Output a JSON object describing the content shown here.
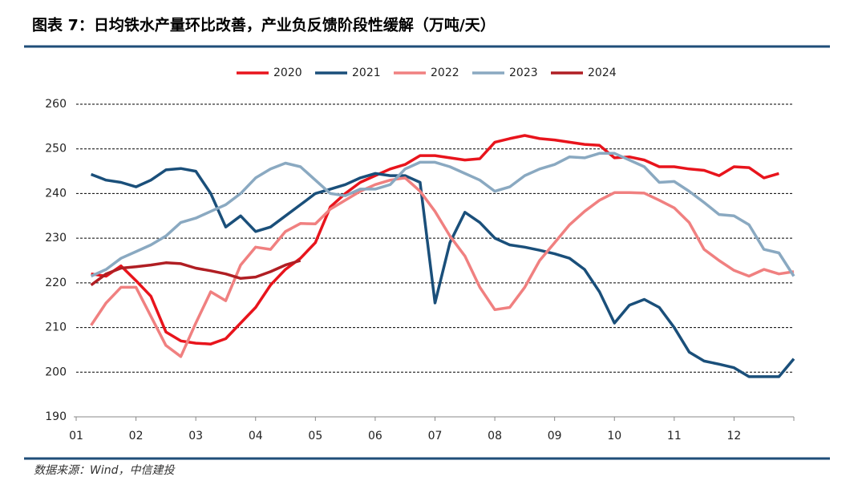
{
  "chart_data": {
    "type": "line",
    "title": "图表 7：日均铁水产量环比改善，产业负反馈阶段性缓解（万吨/天）",
    "source": "数据来源：Wind，中信建投",
    "x": [
      1.25,
      1.5,
      1.75,
      2.0,
      2.25,
      2.5,
      2.75,
      3.0,
      3.25,
      3.5,
      3.75,
      4.0,
      4.25,
      4.5,
      4.75,
      5.0,
      5.25,
      5.5,
      5.75,
      6.0,
      6.25,
      6.5,
      6.75,
      7.0,
      7.25,
      7.5,
      7.75,
      8.0,
      8.25,
      8.5,
      8.75,
      9.0,
      9.25,
      9.5,
      9.75,
      10.0,
      10.25,
      10.5,
      10.75,
      11.0,
      11.25,
      11.5,
      11.75,
      12.0,
      12.25,
      12.5,
      12.75,
      13.0
    ],
    "xlim": [
      1,
      13
    ],
    "xticks": [
      {
        "value": 1,
        "label": "01"
      },
      {
        "value": 2,
        "label": "02"
      },
      {
        "value": 3,
        "label": "03"
      },
      {
        "value": 4,
        "label": "04"
      },
      {
        "value": 5,
        "label": "05"
      },
      {
        "value": 6,
        "label": "06"
      },
      {
        "value": 7,
        "label": "07"
      },
      {
        "value": 8,
        "label": "08"
      },
      {
        "value": 9,
        "label": "09"
      },
      {
        "value": 10,
        "label": "10"
      },
      {
        "value": 11,
        "label": "11"
      },
      {
        "value": 12,
        "label": "12"
      }
    ],
    "ylim": [
      190,
      260
    ],
    "yticks": [
      190,
      200,
      210,
      220,
      230,
      240,
      250,
      260
    ],
    "grid": true,
    "legend": "top",
    "series": [
      {
        "name": "2020",
        "color": "#e8141c",
        "values": [
          222,
          221.5,
          223.8,
          220.5,
          217,
          209,
          207,
          206.5,
          206.3,
          207.5,
          211,
          214.5,
          219.5,
          223,
          225.5,
          229,
          237,
          240,
          242.5,
          244,
          245.5,
          246.5,
          248.5,
          248.5,
          248,
          247.5,
          247.8,
          251.5,
          252.3,
          253,
          252.3,
          252,
          251.5,
          251,
          250.8,
          248,
          248.2,
          247.5,
          246,
          246,
          245.5,
          245.2,
          244,
          246,
          245.8,
          243.5,
          244.5,
          null
        ]
      },
      {
        "name": "2021",
        "color": "#1a4f7a",
        "values": [
          244.3,
          243,
          242.5,
          241.5,
          243,
          245.3,
          245.6,
          245,
          240,
          232.5,
          235,
          231.5,
          232.5,
          235,
          237.5,
          240,
          241,
          242,
          243.5,
          244.5,
          244,
          244,
          242.5,
          215.5,
          229,
          235.8,
          233.5,
          230,
          228.5,
          228,
          227.3,
          226.5,
          225.5,
          223,
          218,
          211,
          215,
          216.3,
          214.5,
          210,
          204.5,
          202.5,
          201.8,
          201,
          199,
          199,
          199,
          203
        ]
      },
      {
        "name": "2022",
        "color": "#f08080",
        "values": [
          210.5,
          215.5,
          219,
          219,
          212.5,
          206,
          203.5,
          211,
          218,
          216,
          224,
          228,
          227.5,
          231.5,
          233.3,
          233.2,
          236.5,
          238.5,
          240.5,
          242,
          243,
          243.5,
          240.5,
          236,
          230.5,
          226,
          219,
          214,
          214.5,
          219,
          225,
          229,
          233,
          236,
          238.5,
          240.2,
          240.2,
          240.1,
          238.5,
          236.8,
          233.5,
          227.5,
          225,
          222.8,
          221.5,
          223,
          222,
          222.5
        ]
      },
      {
        "name": "2023",
        "color": "#8aa9c1",
        "values": [
          221.5,
          223,
          225.5,
          227,
          228.5,
          230.5,
          233.5,
          234.5,
          236,
          237.5,
          240,
          243.5,
          245.5,
          246.8,
          246,
          243,
          240,
          239.5,
          241,
          241,
          242,
          245.5,
          247,
          247,
          246,
          244.5,
          243,
          240.5,
          241.5,
          244,
          245.5,
          246.5,
          248.2,
          248,
          249,
          249,
          247.5,
          246,
          242.5,
          242.7,
          240.5,
          238,
          235.3,
          235,
          233,
          227.5,
          226.7,
          221.5
        ]
      },
      {
        "name": "2024",
        "color": "#b01e23",
        "values": [
          219.5,
          222,
          223.3,
          223.6,
          224,
          224.5,
          224.3,
          223.3,
          222.7,
          222,
          221,
          221.3,
          222.5,
          224,
          225,
          null,
          null,
          null,
          null,
          null,
          null,
          null,
          null,
          null,
          null,
          null,
          null,
          null,
          null,
          null,
          null,
          null,
          null,
          null,
          null,
          null,
          null,
          null,
          null,
          null,
          null,
          null,
          null,
          null,
          null,
          null,
          null,
          null
        ]
      }
    ]
  }
}
